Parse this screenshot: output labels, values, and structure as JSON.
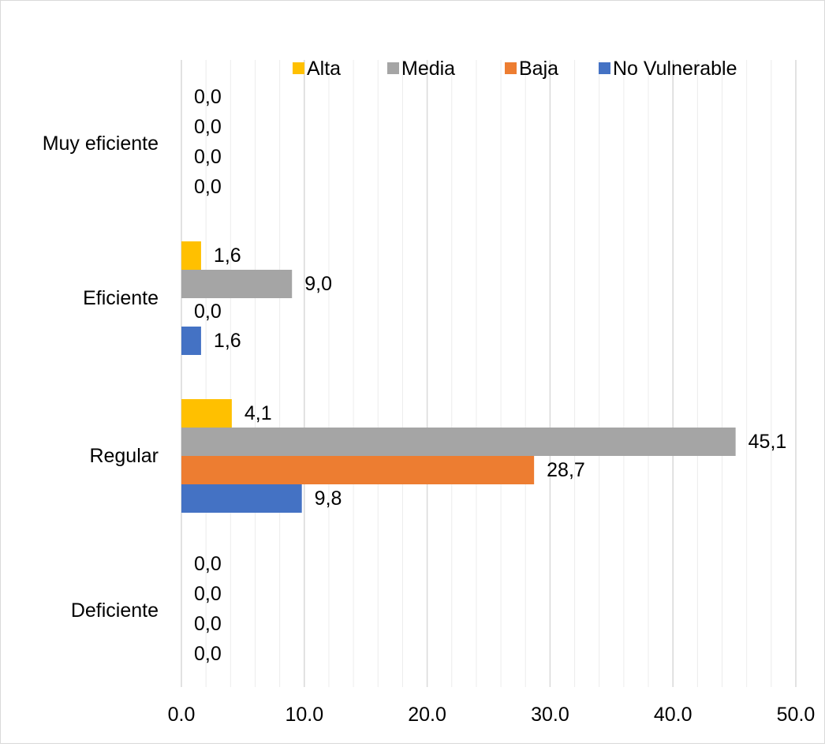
{
  "chart_data": {
    "type": "bar",
    "orientation": "horizontal",
    "categories": [
      "Muy eficiente",
      "Eficiente",
      "Regular",
      "Deficiente"
    ],
    "series": [
      {
        "name": "Alta",
        "color": "#FFC000",
        "values": [
          0.0,
          1.6,
          4.1,
          0.0
        ],
        "labels": [
          "0,0",
          "1,6",
          "4,1",
          "0,0"
        ]
      },
      {
        "name": "Media",
        "color": "#A5A5A5",
        "values": [
          0.0,
          9.0,
          45.1,
          0.0
        ],
        "labels": [
          "0,0",
          "9,0",
          "45,1",
          "0,0"
        ]
      },
      {
        "name": "Baja",
        "color": "#ED7D31",
        "values": [
          0.0,
          0.0,
          28.7,
          0.0
        ],
        "labels": [
          "0,0",
          "0,0",
          "28,7",
          "0,0"
        ]
      },
      {
        "name": "No Vulnerable",
        "color": "#4472C4",
        "values": [
          0.0,
          1.6,
          9.8,
          0.0
        ],
        "labels": [
          "0,0",
          "1,6",
          "9,8",
          "0,0"
        ]
      }
    ],
    "xlim": [
      0,
      50
    ],
    "x_ticks": [
      0,
      10,
      20,
      30,
      40,
      50
    ],
    "x_tick_labels": [
      "0.0",
      "10.0",
      "20.0",
      "30.0",
      "40.0",
      "50.0"
    ],
    "minor_gridlines": true,
    "legend_position": "top-right",
    "title": "",
    "xlabel": "",
    "ylabel": ""
  }
}
